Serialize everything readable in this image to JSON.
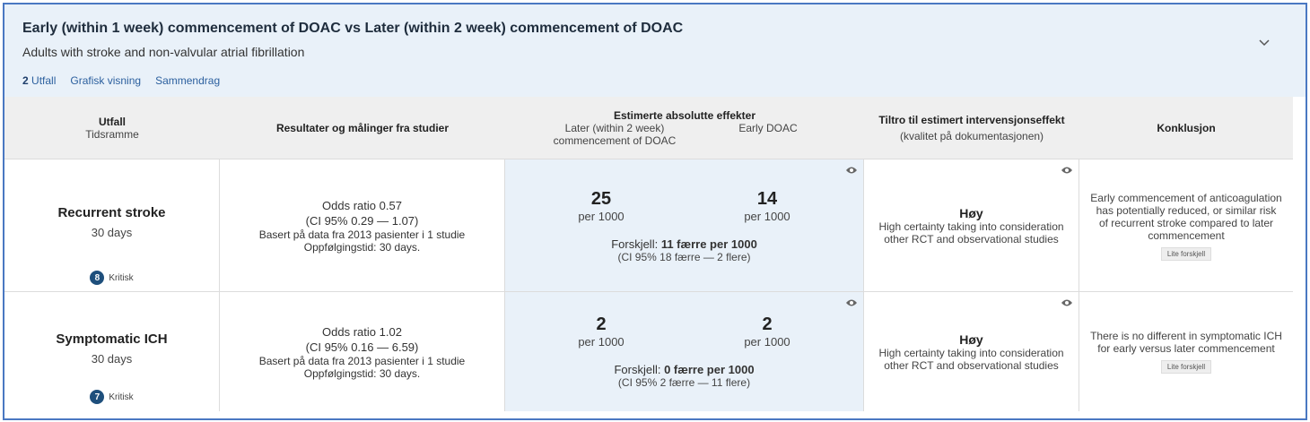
{
  "header": {
    "title": "Early (within 1 week) commencement of DOAC vs Later (within 2 week) commencement of DOAC",
    "subtitle": "Adults with stroke and non-valvular atrial fibrillation",
    "tabs": [
      {
        "count": "2",
        "label": "Utfall"
      },
      {
        "label": "Grafisk visning"
      },
      {
        "label": "Sammendrag"
      }
    ]
  },
  "table": {
    "columns": [
      {
        "title": "Utfall",
        "subtitle": "Tidsramme"
      },
      {
        "title": "Resultater og målinger fra studier"
      },
      {
        "title": "Estimerte absolutte effekter",
        "comparator": "Later (within 2 week) commencement of DOAC",
        "intervention": "Early DOAC"
      },
      {
        "title": "Tiltro til estimert intervensjonseffekt",
        "subtitle": "(kvalitet på dokumentasjonen)"
      },
      {
        "title": "Konklusjon"
      }
    ],
    "rows": [
      {
        "outcome": "Recurrent stroke",
        "timeframe": "30 days",
        "importance": "8",
        "importance_label": "Kritisk",
        "result": [
          "Odds ratio 0.57",
          "(CI 95% 0.29 — 1.07)",
          "Basert på data fra 2013 pasienter i 1 studie",
          "Oppfølgingstid: 30 days."
        ],
        "comparator_value": "25",
        "comparator_unit": "per 1000",
        "intervention_value": "14",
        "intervention_unit": "per 1000",
        "difference_label": "Forskjell:",
        "difference": "11 færre per 1000",
        "difference_ci": "(CI 95% 18 færre — 2 flere)",
        "certainty": "Høy",
        "certainty_note": "High certainty taking into consideration other RCT and observational studies",
        "conclusion": "Early commencement of anticoagulation has potentially reduced, or similar risk of recurrent stroke compared to later commencement",
        "conclusion_tag": "Lite forskjell"
      },
      {
        "outcome": "Symptomatic ICH",
        "timeframe": "30 days",
        "importance": "7",
        "importance_label": "Kritisk",
        "result": [
          "Odds ratio 1.02",
          "(CI 95% 0.16 — 6.59)",
          "Basert på data fra 2013 pasienter i 1 studie",
          "Oppfølgingstid: 30 days."
        ],
        "comparator_value": "2",
        "comparator_unit": "per 1000",
        "intervention_value": "2",
        "intervention_unit": "per 1000",
        "difference_label": "Forskjell:",
        "difference": "0 færre per 1000",
        "difference_ci": "(CI 95% 2 færre — 11 flere)",
        "certainty": "Høy",
        "certainty_note": "High certainty taking into consideration other RCT and observational studies",
        "conclusion": "There is no different in symptomatic ICH for early versus later commencement",
        "conclusion_tag": "Lite forskjell"
      }
    ]
  }
}
